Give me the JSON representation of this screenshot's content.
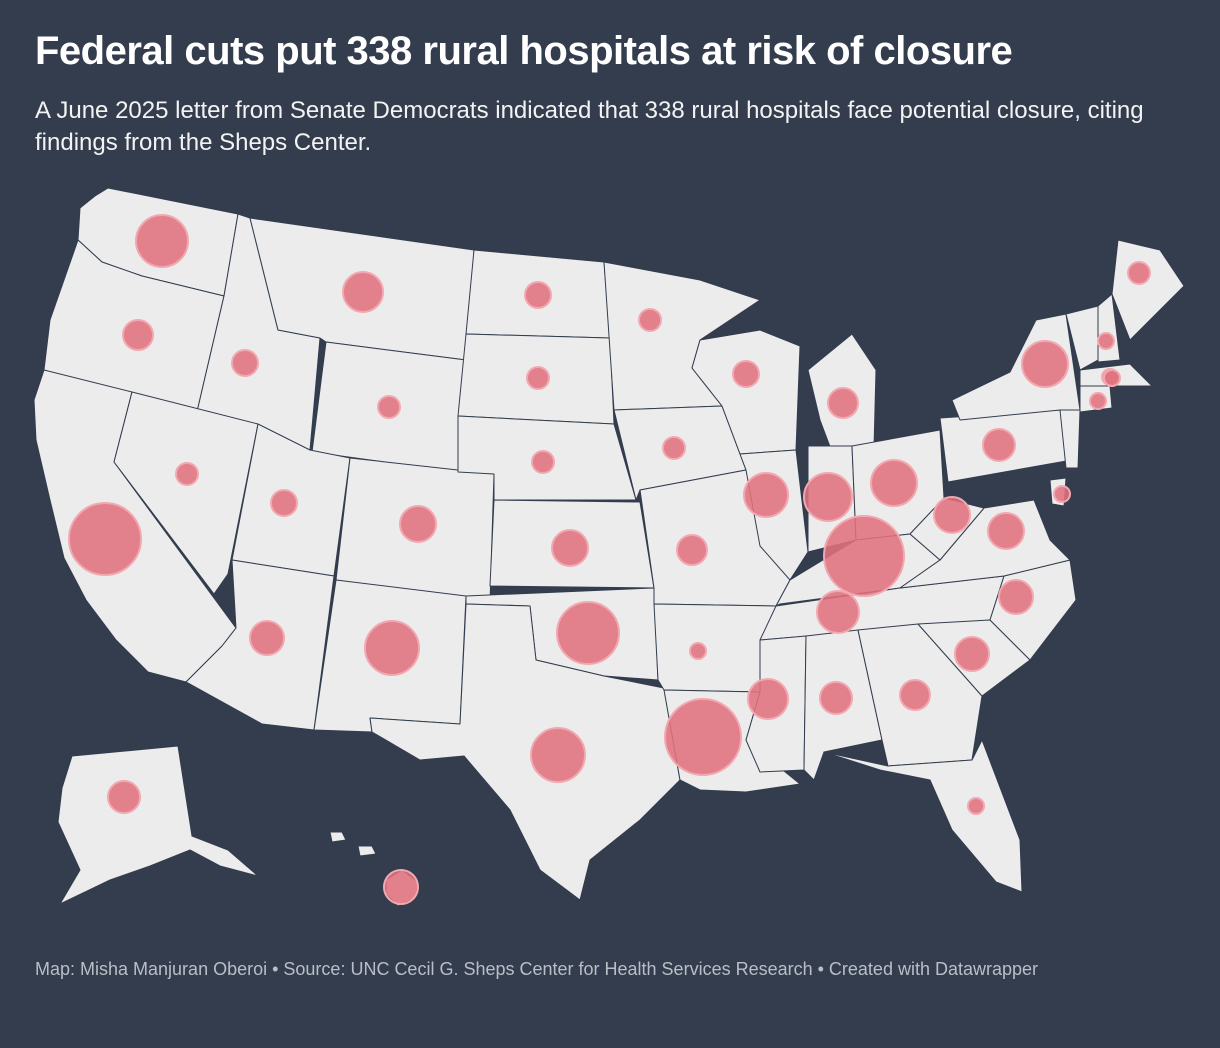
{
  "header": {
    "title": "Federal cuts put 338 rural hospitals at risk of closure",
    "subtitle": "A June 2025 letter from Senate Democrats indicated that 338 rural hospitals face potential closure, citing findings from the Sheps Center."
  },
  "footer": {
    "credit": "Map: Misha Manjuran Oberoi • Source: UNC Cecil G. Sheps Center for Health Services Research • Created with Datawrapper"
  },
  "colors": {
    "background": "#333d4e",
    "land": "#ececec",
    "bubble": "#e0727e"
  },
  "map": {
    "type": "proportional-symbol",
    "region": "United States",
    "bubbles": [
      {
        "state": "WA",
        "size": 26
      },
      {
        "state": "OR",
        "size": 15
      },
      {
        "state": "CA",
        "size": 36
      },
      {
        "state": "ID",
        "size": 13
      },
      {
        "state": "NV",
        "size": 11
      },
      {
        "state": "MT",
        "size": 20
      },
      {
        "state": "WY",
        "size": 11
      },
      {
        "state": "UT",
        "size": 13
      },
      {
        "state": "AZ",
        "size": 17
      },
      {
        "state": "CO",
        "size": 18
      },
      {
        "state": "NM",
        "size": 27
      },
      {
        "state": "ND",
        "size": 13
      },
      {
        "state": "SD",
        "size": 11
      },
      {
        "state": "NE",
        "size": 11
      },
      {
        "state": "KS",
        "size": 18
      },
      {
        "state": "OK",
        "size": 31
      },
      {
        "state": "TX",
        "size": 27
      },
      {
        "state": "MN",
        "size": 11
      },
      {
        "state": "IA",
        "size": 11
      },
      {
        "state": "MO",
        "size": 15
      },
      {
        "state": "AR",
        "size": 8
      },
      {
        "state": "LA",
        "size": 38
      },
      {
        "state": "WI",
        "size": 13
      },
      {
        "state": "IL",
        "size": 22
      },
      {
        "state": "MI",
        "size": 15
      },
      {
        "state": "IN",
        "size": 24
      },
      {
        "state": "OH",
        "size": 23
      },
      {
        "state": "KY",
        "size": 40
      },
      {
        "state": "TN",
        "size": 21
      },
      {
        "state": "MS",
        "size": 20
      },
      {
        "state": "AL",
        "size": 16
      },
      {
        "state": "GA",
        "size": 15
      },
      {
        "state": "FL",
        "size": 8
      },
      {
        "state": "SC",
        "size": 17
      },
      {
        "state": "NC",
        "size": 17
      },
      {
        "state": "VA",
        "size": 18
      },
      {
        "state": "WV",
        "size": 18
      },
      {
        "state": "PA",
        "size": 16
      },
      {
        "state": "NY",
        "size": 23
      },
      {
        "state": "ME",
        "size": 11
      },
      {
        "state": "VT",
        "size": 8
      },
      {
        "state": "NH",
        "size": 8
      },
      {
        "state": "MA",
        "size": 8
      },
      {
        "state": "CT",
        "size": 8
      },
      {
        "state": "DE",
        "size": 8
      },
      {
        "state": "AK",
        "size": 16
      },
      {
        "state": "HI",
        "size": 17
      }
    ]
  }
}
